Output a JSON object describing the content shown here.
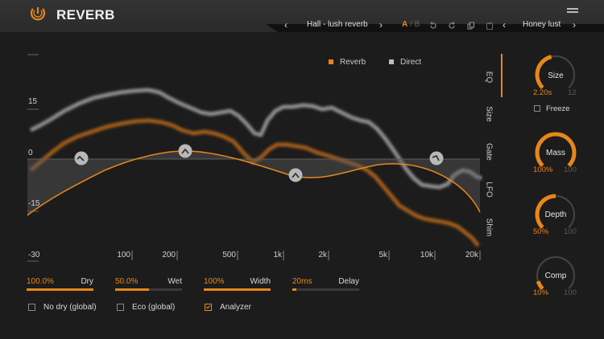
{
  "app": {
    "title": "REVERB"
  },
  "toolbar": {
    "prev_arrow": "‹",
    "next_arrow": "›",
    "preset_name": "Hall - lush reverb",
    "ab_a": "A",
    "ab_sep": "/",
    "ab_b": "B",
    "preset2_name": "Honey lust"
  },
  "legend": {
    "reverb_label": "Reverb",
    "direct_label": "Direct",
    "reverb_color": "#e8861a",
    "direct_color": "#bdbdbd"
  },
  "eq": {
    "y_ticks": [
      "15",
      "0",
      "-15",
      "-30"
    ],
    "x_ticks": [
      "100",
      "200",
      "500",
      "1k",
      "2k",
      "5k",
      "10k",
      "20k"
    ],
    "band_handles": [
      "peak-left",
      "peak",
      "notch",
      "peak-right"
    ]
  },
  "tabs": [
    "EQ",
    "Size",
    "Gate",
    "LFO",
    "Shim"
  ],
  "active_tab": "EQ",
  "sliders": [
    {
      "value": "100.0%",
      "label": "Dry",
      "fraction": 1.0
    },
    {
      "value": "50.0%",
      "label": "Wet",
      "fraction": 0.5
    },
    {
      "value": "100%",
      "label": "Width",
      "fraction": 1.0
    },
    {
      "value": "20ms",
      "label": "Delay",
      "fraction": 0.06
    }
  ],
  "checkboxes": [
    {
      "label": "No dry (global)",
      "checked": false
    },
    {
      "label": "Eco (global)",
      "checked": false
    },
    {
      "label": "Analyzer",
      "checked": true
    }
  ],
  "knobs": {
    "size": {
      "label": "Size",
      "value": "2.20s",
      "max": "12",
      "fraction": 0.45
    },
    "freeze": {
      "label": "Freeze",
      "checked": false
    },
    "mass": {
      "label": "Mass",
      "value": "100%",
      "max": "100",
      "fraction": 1.0
    },
    "depth": {
      "label": "Depth",
      "value": "50%",
      "max": "100",
      "fraction": 0.5
    },
    "comp": {
      "label": "Comp",
      "value": "10%",
      "max": "100",
      "fraction": 0.1
    }
  },
  "colors": {
    "accent": "#e8861a",
    "background": "#1c1c1c"
  }
}
